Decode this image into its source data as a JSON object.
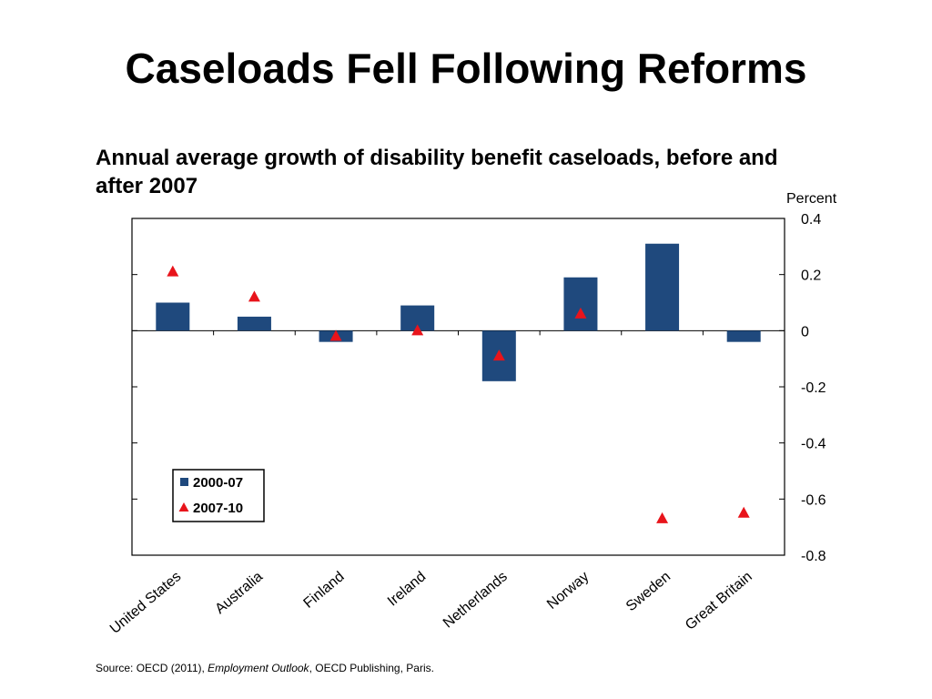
{
  "slide": {
    "title": "Caseloads Fell Following Reforms"
  },
  "source": {
    "prefix": "Source: OECD (2011), ",
    "italic": "Employment Outlook",
    "suffix": ", OECD Publishing, Paris."
  },
  "chart_data": {
    "type": "bar",
    "title": "Annual average growth of disability benefit caseloads, before and after 2007",
    "axis_unit_label": "Percent",
    "y_axis_side": "right",
    "ylim": [
      -0.8,
      0.4
    ],
    "yticks": [
      0.4,
      0.2,
      0,
      -0.2,
      -0.4,
      -0.6,
      -0.8
    ],
    "ytick_labels": [
      "0.4",
      "0.2",
      "0",
      "-0.2",
      "-0.4",
      "-0.6",
      "-0.8"
    ],
    "grid": false,
    "legend_position": "bottom-left",
    "categories": [
      "United States",
      "Australia",
      "Finland",
      "Ireland",
      "Netherlands",
      "Norway",
      "Sweden",
      "Great Britain"
    ],
    "series": [
      {
        "name": "2000-07",
        "mark": "bar",
        "color": "#1f497d",
        "values": [
          0.1,
          0.05,
          -0.04,
          0.09,
          -0.18,
          0.19,
          0.31,
          -0.04
        ]
      },
      {
        "name": "2007-10",
        "mark": "triangle",
        "color": "#e8141b",
        "values": [
          0.21,
          0.12,
          -0.02,
          0.0,
          -0.09,
          0.06,
          -0.67,
          -0.65
        ]
      }
    ]
  }
}
